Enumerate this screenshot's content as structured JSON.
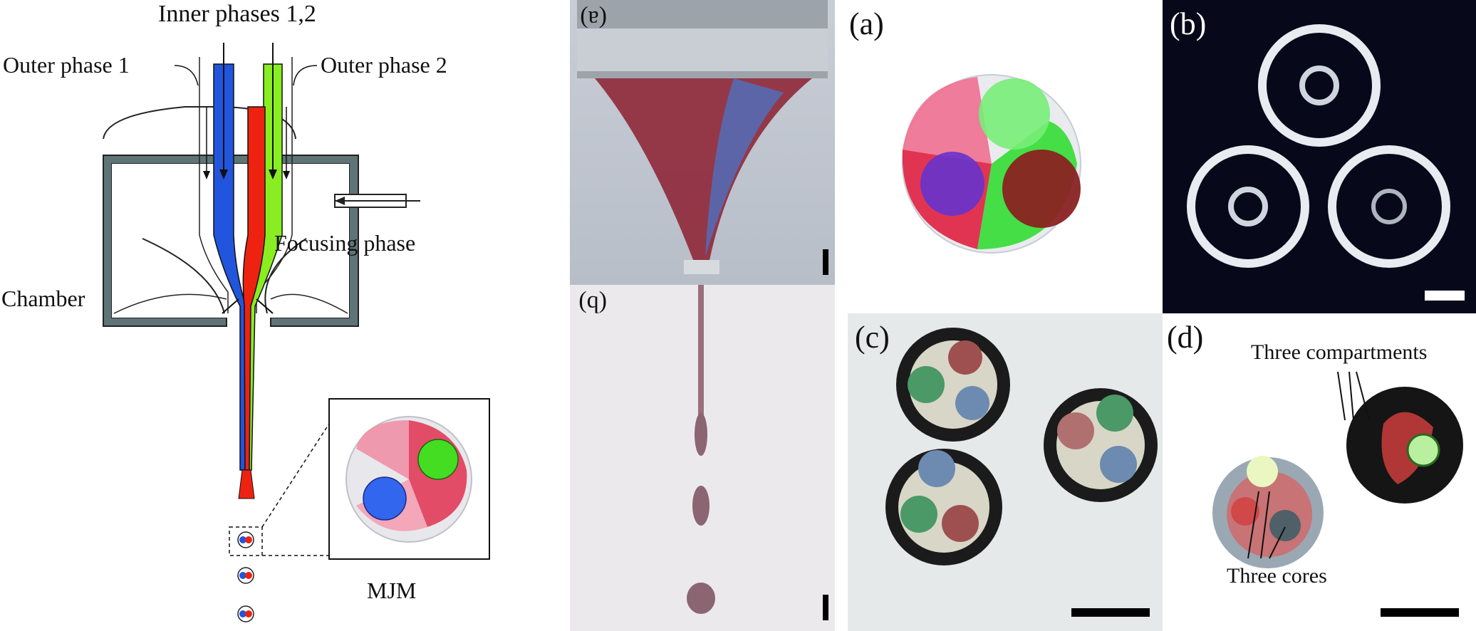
{
  "schematic": {
    "inner_phases": "Inner phases 1,2",
    "outer_phase_1": "Outer phase 1",
    "outer_phase_2": "Outer phase 2",
    "focusing_phase": "Focusing phase",
    "chamber": "Chamber",
    "mjm": "MJM"
  },
  "photo_left": {
    "label_top": "(a)",
    "label_bottom": "(b)"
  },
  "panels": {
    "a": "(a)",
    "b": "(b)",
    "c": "(c)",
    "d": "(d)",
    "three_compartments": "Three compartments",
    "three_cores": "Three cores"
  },
  "colors": {
    "inner_blue": "#2255dd",
    "inner_green": "#88ee22",
    "inner_red": "#ee2211",
    "chamber_wall": "#5f7476"
  }
}
